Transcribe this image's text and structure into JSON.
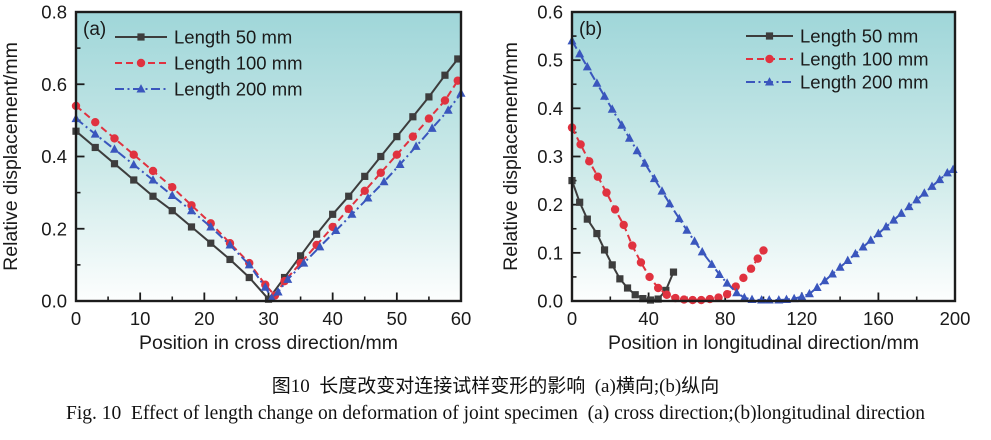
{
  "caption": {
    "chinese": "图10  长度改变对连接试样变形的影响  (a)横向;(b)纵向",
    "english": "Fig. 10  Effect of length change on deformation of joint specimen  (a) cross direction;(b)longitudinal direction"
  },
  "colors": {
    "background": "#ffffff",
    "frame": "#1c1c1c",
    "text": "#1a1a1a",
    "plot_gradient_top": "#9fd6d9",
    "plot_gradient_mid": "#cdeae9",
    "plot_gradient_bottom": "#fdfefe",
    "series_black": "#3d3d3d",
    "series_red": "#e0323f",
    "series_blue": "#3a56bd"
  },
  "chart_data": [
    {
      "type": "line",
      "panel_label": "(a)",
      "xlabel": "Position in cross direction/mm",
      "ylabel": "Relative displacement/mm",
      "xlim": [
        0,
        60
      ],
      "ylim": [
        0,
        0.8
      ],
      "grid": false,
      "legend_position": "top-left",
      "x_ticks": {
        "values": [
          0,
          10,
          20,
          30,
          40,
          50,
          60
        ],
        "labels": [
          "0",
          "10",
          "20",
          "30",
          "40",
          "50",
          "60"
        ]
      },
      "x_minor_ticks": [
        5,
        15,
        25,
        35,
        45,
        55
      ],
      "y_ticks": {
        "values": [
          0,
          0.2,
          0.4,
          0.6,
          0.8
        ],
        "labels": [
          "0.0",
          "0.2",
          "0.4",
          "0.6",
          "0.8"
        ]
      },
      "y_minor_ticks": [
        0.1,
        0.3,
        0.5,
        0.7
      ],
      "series": [
        {
          "id": "length-50",
          "name": "Length 50 mm",
          "color": "#3d3d3d",
          "marker": "square",
          "dash": "solid",
          "points": [
            [
              0,
              0.47
            ],
            [
              3,
              0.425
            ],
            [
              6,
              0.38
            ],
            [
              9,
              0.335
            ],
            [
              12,
              0.29
            ],
            [
              15,
              0.25
            ],
            [
              18,
              0.205
            ],
            [
              21,
              0.16
            ],
            [
              24,
              0.115
            ],
            [
              27,
              0.065
            ],
            [
              30,
              0.005
            ],
            [
              32.5,
              0.065
            ],
            [
              35,
              0.125
            ],
            [
              37.5,
              0.185
            ],
            [
              40,
              0.24
            ],
            [
              42.5,
              0.29
            ],
            [
              45,
              0.345
            ],
            [
              47.5,
              0.4
            ],
            [
              50,
              0.455
            ],
            [
              52.5,
              0.51
            ],
            [
              55,
              0.565
            ],
            [
              57.5,
              0.625
            ],
            [
              59.5,
              0.67
            ]
          ]
        },
        {
          "id": "length-100",
          "name": "Length 100 mm",
          "color": "#e0323f",
          "marker": "circle",
          "dash": "dashed",
          "points": [
            [
              0,
              0.54
            ],
            [
              3,
              0.495
            ],
            [
              6,
              0.45
            ],
            [
              9,
              0.405
            ],
            [
              12,
              0.36
            ],
            [
              15,
              0.315
            ],
            [
              18,
              0.265
            ],
            [
              21,
              0.215
            ],
            [
              24,
              0.16
            ],
            [
              27,
              0.105
            ],
            [
              29.5,
              0.045
            ],
            [
              31,
              0.015
            ],
            [
              32.5,
              0.055
            ],
            [
              35,
              0.105
            ],
            [
              37.5,
              0.155
            ],
            [
              40,
              0.205
            ],
            [
              42.5,
              0.255
            ],
            [
              45,
              0.305
            ],
            [
              47.5,
              0.355
            ],
            [
              50,
              0.405
            ],
            [
              52.5,
              0.455
            ],
            [
              55,
              0.505
            ],
            [
              57.5,
              0.555
            ],
            [
              59.5,
              0.61
            ]
          ]
        },
        {
          "id": "length-200",
          "name": "Length 200 mm",
          "color": "#3a56bd",
          "marker": "triangle",
          "dash": "dashdot",
          "points": [
            [
              0,
              0.505
            ],
            [
              3,
              0.462
            ],
            [
              6,
              0.42
            ],
            [
              9,
              0.377
            ],
            [
              12,
              0.335
            ],
            [
              15,
              0.292
            ],
            [
              18,
              0.25
            ],
            [
              21,
              0.205
            ],
            [
              24,
              0.155
            ],
            [
              27,
              0.1
            ],
            [
              29.5,
              0.038
            ],
            [
              30.5,
              0.008
            ],
            [
              31.5,
              0.025
            ],
            [
              33,
              0.06
            ],
            [
              35.5,
              0.105
            ],
            [
              38,
              0.15
            ],
            [
              40.5,
              0.195
            ],
            [
              43,
              0.24
            ],
            [
              45.5,
              0.285
            ],
            [
              48,
              0.33
            ],
            [
              50.5,
              0.378
            ],
            [
              53,
              0.428
            ],
            [
              55.5,
              0.478
            ],
            [
              58,
              0.528
            ],
            [
              60,
              0.575
            ]
          ]
        }
      ]
    },
    {
      "type": "line",
      "panel_label": "(b)",
      "xlabel": "Position in longitudinal direction/mm",
      "ylabel": "Relative displacement/mm",
      "xlim": [
        0,
        200
      ],
      "ylim": [
        0,
        0.6
      ],
      "grid": false,
      "legend_position": "top-right",
      "x_ticks": {
        "values": [
          0,
          40,
          80,
          120,
          160,
          200
        ],
        "labels": [
          "0",
          "40",
          "80",
          "120",
          "160",
          "200"
        ]
      },
      "x_minor_ticks": [
        20,
        60,
        100,
        140,
        180
      ],
      "y_ticks": {
        "values": [
          0,
          0.1,
          0.2,
          0.3,
          0.4,
          0.5,
          0.6
        ],
        "labels": [
          "0.0",
          "0.1",
          "0.2",
          "0.3",
          "0.4",
          "0.5",
          "0.6"
        ]
      },
      "y_minor_ticks": [
        0.05,
        0.15,
        0.25,
        0.35,
        0.45,
        0.55
      ],
      "series": [
        {
          "id": "length-50",
          "name": "Length 50 mm",
          "color": "#3d3d3d",
          "marker": "square",
          "dash": "solid",
          "points": [
            [
              0,
              0.25
            ],
            [
              4,
              0.205
            ],
            [
              8,
              0.17
            ],
            [
              13,
              0.14
            ],
            [
              17,
              0.106
            ],
            [
              21,
              0.075
            ],
            [
              25,
              0.046
            ],
            [
              29,
              0.027
            ],
            [
              33,
              0.013
            ],
            [
              37,
              0.005
            ],
            [
              41,
              0.002
            ],
            [
              45,
              0.004
            ],
            [
              49,
              0.022
            ],
            [
              53,
              0.06
            ]
          ]
        },
        {
          "id": "length-100",
          "name": "Length 100 mm",
          "color": "#e0323f",
          "marker": "circle",
          "dash": "dashed",
          "points": [
            [
              0,
              0.36
            ],
            [
              4.5,
              0.325
            ],
            [
              9,
              0.29
            ],
            [
              13.5,
              0.258
            ],
            [
              18,
              0.225
            ],
            [
              22.5,
              0.19
            ],
            [
              27,
              0.158
            ],
            [
              31.5,
              0.115
            ],
            [
              36,
              0.08
            ],
            [
              40.5,
              0.05
            ],
            [
              45,
              0.027
            ],
            [
              49.5,
              0.013
            ],
            [
              54,
              0.006
            ],
            [
              58.5,
              0.003
            ],
            [
              63,
              0.002
            ],
            [
              67.5,
              0.002
            ],
            [
              72,
              0.004
            ],
            [
              76.5,
              0.007
            ],
            [
              81,
              0.014
            ],
            [
              85.5,
              0.03
            ],
            [
              89.5,
              0.048
            ],
            [
              93.5,
              0.067
            ],
            [
              97,
              0.088
            ],
            [
              100,
              0.105
            ]
          ]
        },
        {
          "id": "length-200",
          "name": "Length 200 mm",
          "color": "#3a56bd",
          "marker": "triangle",
          "dash": "dashdot",
          "points": [
            [
              0,
              0.54
            ],
            [
              4,
              0.513
            ],
            [
              8,
              0.486
            ],
            [
              13,
              0.452
            ],
            [
              17,
              0.425
            ],
            [
              21,
              0.398
            ],
            [
              26,
              0.365
            ],
            [
              30,
              0.338
            ],
            [
              34,
              0.312
            ],
            [
              38,
              0.286
            ],
            [
              43,
              0.254
            ],
            [
              47,
              0.228
            ],
            [
              51,
              0.202
            ],
            [
              56,
              0.171
            ],
            [
              60,
              0.147
            ],
            [
              64,
              0.124
            ],
            [
              68,
              0.102
            ],
            [
              73,
              0.076
            ],
            [
              77,
              0.055
            ],
            [
              81,
              0.037
            ],
            [
              86,
              0.017
            ],
            [
              90,
              0.007
            ],
            [
              94,
              0.003
            ],
            [
              99,
              0.002
            ],
            [
              103,
              0.002
            ],
            [
              108,
              0.002
            ],
            [
              112,
              0.003
            ],
            [
              116,
              0.005
            ],
            [
              120,
              0.009
            ],
            [
              124,
              0.015
            ],
            [
              128,
              0.028
            ],
            [
              132,
              0.042
            ],
            [
              136,
              0.056
            ],
            [
              140,
              0.07
            ],
            [
              144,
              0.084
            ],
            [
              148,
              0.098
            ],
            [
              152,
              0.112
            ],
            [
              156,
              0.126
            ],
            [
              160,
              0.14
            ],
            [
              164,
              0.154
            ],
            [
              168,
              0.168
            ],
            [
              172,
              0.182
            ],
            [
              176,
              0.196
            ],
            [
              180,
              0.21
            ],
            [
              184,
              0.224
            ],
            [
              188,
              0.238
            ],
            [
              192,
              0.252
            ],
            [
              196,
              0.266
            ],
            [
              199,
              0.273
            ]
          ]
        }
      ]
    }
  ]
}
